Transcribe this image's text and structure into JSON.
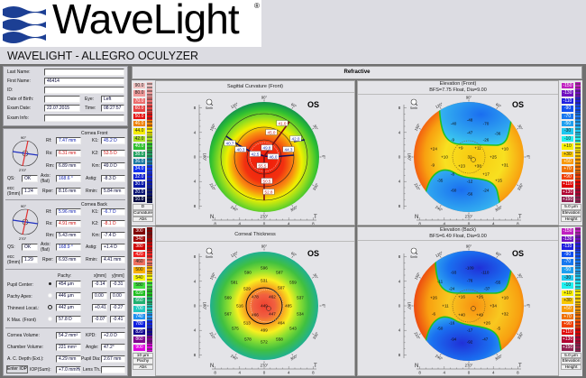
{
  "header": {
    "brand": "WaveLight",
    "registered": "®",
    "app_title": "WAVELIGHT  -  ALLEGRO OCULYZER"
  },
  "patient": {
    "last_name_label": "Last Name:",
    "last_name": "",
    "first_name_label": "First Name:",
    "first_name": "46414",
    "id_label": "ID:",
    "id": "",
    "dob_label": "Date of Birth:",
    "dob": "",
    "eye_label": "Eye:",
    "eye": "Left",
    "exam_date_label": "Exam Date:",
    "exam_date": "22.07.2015",
    "time_label": "Time:",
    "time": "08:27:57",
    "exam_info_label": "Exam Info:",
    "exam_info": ""
  },
  "compass": {
    "top": "90°",
    "bottom": "270°",
    "left": "180°",
    "right": "0°"
  },
  "cornea_front": {
    "title": "Cornea Front",
    "rf_label": "Rf:",
    "rf": "7.47 mm",
    "rs_label": "Rs:",
    "rs": "6.31 mm",
    "rm_label": "Rm:",
    "rm": "6.89 mm",
    "k1_label": "K1:",
    "k1": "45.2 D",
    "k2_label": "K2:",
    "k2": "53.5 D",
    "km_label": "Km:",
    "km": "49.0 D",
    "qs_label": "QS:",
    "qs": "OK",
    "axis_label": "Axis: (flat)",
    "axis": "168.6 °",
    "astig_label": "Astig:",
    "astig": "-8.3 D",
    "ecc_label": "ecc (9mm)",
    "ecc": "1.24",
    "rper_label": "Rper:",
    "rper": "8.16 mm",
    "rmin_label": "Rmin:",
    "rmin": "5.84 mm"
  },
  "cornea_back": {
    "title": "Cornea Back",
    "rf_label": "Rf:",
    "rf": "5.96 mm",
    "rs_label": "Rs:",
    "rs": "4.91 mm",
    "rm_label": "Rm:",
    "rm": "5.43 mm",
    "k1_label": "K1:",
    "k1": "-6.7 D",
    "k2_label": "K2:",
    "k2": "-8.1 D",
    "km_label": "Km:",
    "km": "-7.4 D",
    "qs_label": "QS:",
    "qs": "OK",
    "axis_label": "Axis: (flat)",
    "axis": "168.9 °",
    "astig_label": "Astig:",
    "astig": "+1.4 D",
    "ecc_label": "ecc (9mm)",
    "ecc": "1.29",
    "rper_label": "Rper:",
    "rper": "6.93 mm",
    "rmin_label": "Rmin:",
    "rmin": "4.41 mm"
  },
  "pachy": {
    "col_pachy": "Pachy:",
    "col_x": "x[mm]",
    "col_y": "y[mm]",
    "rows": [
      {
        "label": "Pupil Center:",
        "pachy": "454 µm",
        "x": "-0.14",
        "y": "-0.31"
      },
      {
        "label": "Pachy Apex:",
        "pachy": "446 µm",
        "x": "0.00",
        "y": "0.00"
      },
      {
        "label": "Thinnest Locat.:",
        "pachy": "442 µm",
        "x": "+0.41",
        "y": "-0.27"
      },
      {
        "label": "K Max. (Front)",
        "pachy": "57.8 D",
        "x": "-0.07",
        "y": "-0.41"
      }
    ]
  },
  "volumes": {
    "cornea_volume_label": "Cornea Volume:",
    "cornea_volume": "54.2 mm³",
    "kpd_label": "KPD:",
    "kpd": "+2.0 D",
    "chamber_volume_label": "Chamber Volume:",
    "chamber_volume": "221 mm³",
    "angle_label": "Angle:",
    "angle": "47.2°",
    "ac_depth_label": "A. C. Depth (Ext.):",
    "ac_depth": "4.29 mm",
    "pupil_dia_label": "Pupil Dia:",
    "pupil_dia": "2.67 mm",
    "enter_iop_button": "Enter IOP",
    "iop_label": "IOP(Sum):",
    "iop": "+7.0 mmHg",
    "lens_th_label": "Lens Th.:",
    "lens_th": ""
  },
  "refractive_tab": "Refractive",
  "map_common": {
    "eye": "OS",
    "smooth": "Smth",
    "nasal": "N",
    "temporal": "T",
    "degrees": [
      "90°",
      "60°",
      "30°",
      "0°",
      "330°",
      "300°",
      "270°",
      "240°",
      "210°",
      "180°",
      "150°",
      "120°"
    ],
    "ticks": [
      "8",
      "4",
      "0",
      "4",
      "8"
    ]
  },
  "maps": {
    "sagittal": {
      "title": "Sagittal Curvature (Front)",
      "subtitle": "",
      "values": [
        "41.0",
        "45.0",
        "42.0",
        "40.7",
        "40.3",
        "42.5",
        "49.8",
        "44.3",
        "46.0",
        "55.5",
        "50.5",
        "52.8"
      ],
      "scale": {
        "labels": [
          "90.0",
          "80.0",
          "70.0",
          "60.0",
          "50.0",
          "46.0",
          "44.0",
          "42.0",
          "40.0",
          "38.0",
          "36.0",
          "34.0",
          "32.0",
          "30.0",
          "20.0",
          "10.0"
        ],
        "colors": [
          "#f0c0c0",
          "#f09a9a",
          "#ec6c6c",
          "#e64040",
          "#e61010",
          "#f08000",
          "#f4ec00",
          "#a8e020",
          "#30c030",
          "#20a060",
          "#1878a0",
          "#1030f0",
          "#1020d0",
          "#0818a8",
          "#041070",
          "#020840"
        ],
        "footer": [
          "D",
          "Curvature",
          "Abs"
        ]
      }
    },
    "elev_front": {
      "title": "Elevation (Front)",
      "subtitle": "BFS=7.75 Float, Dia=9.00",
      "values": [
        "-40",
        "-48",
        "-70",
        "-47",
        "-36",
        "-9",
        "-26",
        "+24",
        "+9",
        "+11",
        "+10",
        "+10",
        "32",
        "+25",
        "-9",
        "+23",
        "+38",
        "+31",
        "-8",
        "+17",
        "-12",
        "+15",
        "-35",
        "-60",
        "-56",
        "-24"
      ],
      "scale": {
        "labels": [
          "-150",
          "-130",
          "-110",
          "-90",
          "-70",
          "-50",
          "-30",
          "-10",
          "+10",
          "+30",
          "+50",
          "+70",
          "+90",
          "+110",
          "+130",
          "+150"
        ],
        "colors": [
          "#c020c0",
          "#7010c0",
          "#2020e0",
          "#1050f0",
          "#1878f0",
          "#20a0f0",
          "#20c8f0",
          "#20f0f0",
          "#f8f000",
          "#f8c800",
          "#f89800",
          "#f07000",
          "#f04000",
          "#e00000",
          "#b00030",
          "#902050"
        ],
        "footer": [
          "5.0 µm",
          "Elevation",
          "Height"
        ]
      }
    },
    "thickness": {
      "title": "Corneal Thickness",
      "subtitle": "",
      "values": [
        "596",
        "590",
        "587",
        "581",
        "531",
        "559",
        "529",
        "507",
        "569",
        "478",
        "462",
        "537",
        "516",
        "449",
        "485",
        "567",
        "466",
        "447",
        "534",
        "513",
        "464",
        "499",
        "543",
        "575",
        "578",
        "572",
        "558"
      ],
      "scale": {
        "labels": [
          "300",
          "340",
          "380",
          "420",
          "460",
          "500",
          "540",
          "580",
          "620",
          "660",
          "700",
          "740",
          "780",
          "820",
          "860",
          "900"
        ],
        "colors": [
          "#800000",
          "#a00000",
          "#d00000",
          "#f02020",
          "#f07060",
          "#f8b000",
          "#f8f800",
          "#40e040",
          "#20c020",
          "#20b070",
          "#20c8c0",
          "#2090f0",
          "#1020e0",
          "#100090",
          "#800090",
          "#e000e0"
        ],
        "footer": [
          "10 µm",
          "Pachy",
          "Abs"
        ]
      }
    },
    "elev_back": {
      "title": "Elevation (Back)",
      "subtitle": "BFS=6.49 Float, Dia=9.00",
      "values": [
        "-93",
        "-109",
        "-110",
        "-11",
        "-76",
        "-55",
        "-24",
        "-37",
        "+26",
        "+16",
        "+26",
        "+10",
        "+11",
        "+34",
        "-6",
        "+40",
        "+49",
        "+32",
        "-16",
        "+26",
        "-17",
        "-5",
        "-50",
        "-94",
        "-92",
        "-47"
      ],
      "scale": {
        "labels": [
          "-150",
          "-130",
          "-110",
          "-90",
          "-70",
          "-50",
          "-30",
          "-10",
          "+10",
          "+30",
          "+50",
          "+70",
          "+90",
          "+110",
          "+130",
          "+150"
        ],
        "colors": [
          "#c020c0",
          "#7010c0",
          "#2020e0",
          "#1050f0",
          "#1878f0",
          "#20a0f0",
          "#20c8f0",
          "#20f0f0",
          "#f8f000",
          "#f8c800",
          "#f89800",
          "#f07000",
          "#f04000",
          "#e00000",
          "#b00030",
          "#902050"
        ],
        "footer": [
          "5.0 µm",
          "Elevation",
          "Height"
        ]
      }
    }
  }
}
